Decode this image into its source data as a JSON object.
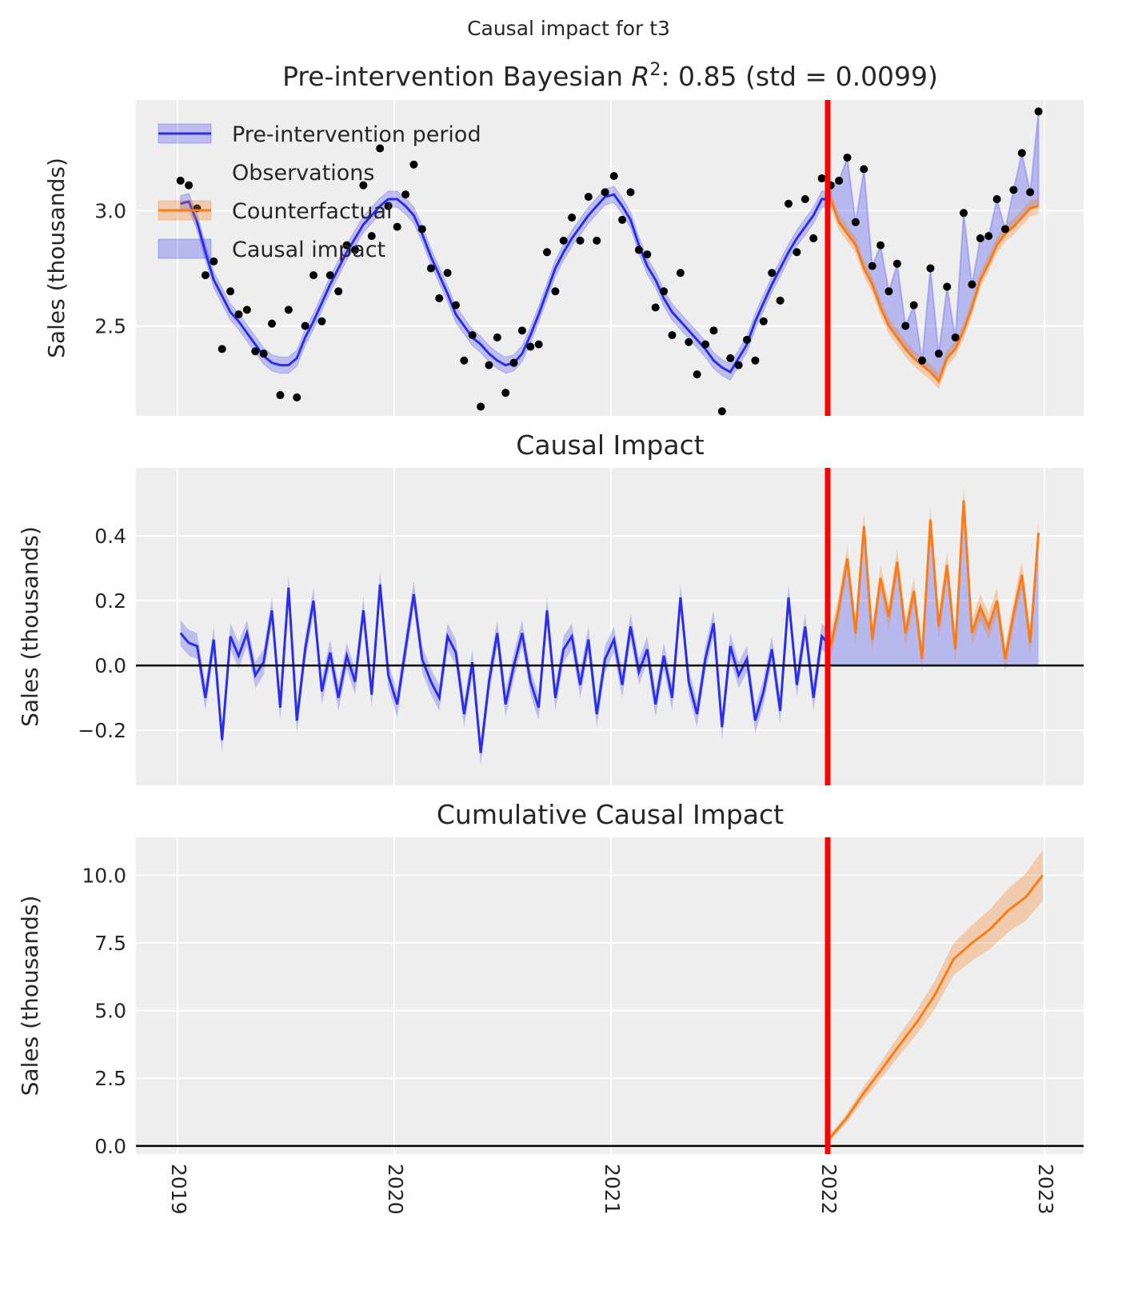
{
  "suptitle": "Causal impact for t3",
  "colors": {
    "model": "#2a2eec",
    "counterfactual": "#fa7c17",
    "intervention": "#ff0000",
    "observations": "#000000",
    "panel_bg": "#eeeeee",
    "grid": "#ffffff"
  },
  "chart_data": [
    {
      "type": "line",
      "title": "Pre-intervention Bayesian R²: 0.85 (std = 0.0099)",
      "title_parts": {
        "prefix": "Pre-intervention Bayesian ",
        "var": "R",
        "sup": "2",
        "suffix": ": 0.85 (std = 0.0099)"
      },
      "ylabel": "Sales (thousands)",
      "ylim": [
        2.11,
        3.48
      ],
      "xlim": [
        "2018-10-23",
        "2023-03-08"
      ],
      "yticks": [
        2.5,
        3.0
      ],
      "ytick_labels": [
        "2.5",
        "3.0"
      ],
      "grid": true,
      "legend": {
        "placement": "top-left",
        "entries": [
          "Pre-intervention period",
          "Observations",
          "Counterfactual",
          "Causal impact"
        ]
      },
      "intervention_date": "2022-01-01",
      "band_halfwidth": 0.035
    },
    {
      "type": "line",
      "title": "Causal Impact",
      "ylabel": "Sales (thousands)",
      "ylim": [
        -0.37,
        0.61
      ],
      "yticks": [
        -0.2,
        0.0,
        0.2,
        0.4
      ],
      "ytick_labels": [
        "−0.2",
        "0.0",
        "0.2",
        "0.4"
      ],
      "grid": true,
      "band_halfwidth": 0.04
    },
    {
      "type": "line",
      "title": "Cumulative Causal Impact",
      "ylabel": "Sales (thousands)",
      "ylim": [
        -0.3,
        11.4
      ],
      "yticks": [
        0.0,
        2.5,
        5.0,
        7.5,
        10.0
      ],
      "ytick_labels": [
        "0.0",
        "2.5",
        "5.0",
        "7.5",
        "10.0"
      ],
      "grid": true,
      "xticks": [
        "2019-01-01",
        "2020-01-01",
        "2021-01-01",
        "2022-01-01",
        "2023-01-01"
      ],
      "xtick_labels": [
        "2019",
        "2020",
        "2021",
        "2022",
        "2023"
      ],
      "cumulative": {
        "dates": [
          "2022-01-01",
          "2022-02-01",
          "2022-03-01",
          "2022-04-01",
          "2022-05-01",
          "2022-06-01",
          "2022-07-01",
          "2022-08-01",
          "2022-09-01",
          "2022-10-01",
          "2022-11-01",
          "2022-12-01",
          "2022-12-29"
        ],
        "values": [
          0.2,
          1.0,
          1.9,
          2.8,
          3.7,
          4.6,
          5.6,
          6.9,
          7.5,
          8.0,
          8.7,
          9.2,
          10.0
        ]
      }
    }
  ],
  "series": {
    "month_days": [
      "01-06",
      "01-20",
      "02-03",
      "02-17",
      "03-03",
      "03-17",
      "03-31",
      "04-14",
      "04-28",
      "05-12",
      "05-26",
      "06-09",
      "06-23",
      "07-07",
      "07-21",
      "08-04",
      "08-18",
      "09-01",
      "09-15",
      "09-29",
      "10-13",
      "10-27",
      "11-10",
      "11-24",
      "12-08",
      "12-22"
    ],
    "years": [
      2019,
      2020,
      2021,
      2022
    ],
    "model_mean": [
      3.03,
      3.04,
      2.95,
      2.82,
      2.7,
      2.63,
      2.56,
      2.52,
      2.47,
      2.42,
      2.37,
      2.34,
      2.33,
      2.33,
      2.36,
      2.45,
      2.52,
      2.6,
      2.68,
      2.75,
      2.82,
      2.88,
      2.94,
      2.98,
      3.02,
      3.05,
      3.05,
      3.02,
      2.98,
      2.9,
      2.8,
      2.72,
      2.64,
      2.55,
      2.5,
      2.45,
      2.42,
      2.38,
      2.35,
      2.33,
      2.34,
      2.38,
      2.46,
      2.55,
      2.65,
      2.75,
      2.82,
      2.88,
      2.93,
      2.98,
      3.02,
      3.06,
      3.07,
      3.02,
      2.96,
      2.85,
      2.76,
      2.7,
      2.62,
      2.56,
      2.52,
      2.48,
      2.44,
      2.4,
      2.35,
      2.32,
      2.3,
      2.36,
      2.42,
      2.52,
      2.6,
      2.68,
      2.75,
      2.82,
      2.88,
      2.93,
      2.98,
      3.05,
      3.05,
      2.95,
      2.9,
      2.85,
      2.75,
      2.68,
      2.58,
      2.5,
      2.45,
      2.4,
      2.36,
      2.33,
      2.3,
      2.26,
      2.36,
      2.4,
      2.48,
      2.58,
      2.7,
      2.77,
      2.85,
      2.9,
      2.93,
      2.97,
      3.01,
      3.02
    ],
    "impact": [
      0.1,
      0.07,
      0.06,
      -0.1,
      0.08,
      -0.23,
      0.09,
      0.03,
      0.1,
      -0.03,
      0.01,
      0.17,
      -0.13,
      0.24,
      -0.17,
      0.05,
      0.2,
      -0.08,
      0.04,
      -0.1,
      0.03,
      -0.05,
      0.17,
      -0.09,
      0.25,
      -0.03,
      -0.12,
      0.05,
      0.22,
      0.02,
      -0.05,
      -0.1,
      0.09,
      0.04,
      -0.15,
      0.01,
      -0.27,
      -0.05,
      0.1,
      -0.12,
      0.0,
      0.1,
      -0.05,
      -0.13,
      0.17,
      -0.1,
      0.05,
      0.09,
      -0.06,
      0.08,
      -0.15,
      0.02,
      0.08,
      -0.06,
      0.12,
      -0.02,
      0.05,
      -0.12,
      0.03,
      -0.1,
      0.21,
      -0.05,
      -0.15,
      0.02,
      0.13,
      -0.19,
      0.06,
      -0.03,
      0.02,
      -0.17,
      -0.08,
      0.05,
      -0.14,
      0.21,
      -0.06,
      0.12,
      -0.1,
      0.09,
      0.06,
      0.18,
      0.33,
      0.1,
      0.43,
      0.08,
      0.27,
      0.15,
      0.32,
      0.1,
      0.23,
      0.02,
      0.45,
      0.12,
      0.31,
      0.05,
      0.51,
      0.1,
      0.18,
      0.12,
      0.2,
      0.02,
      0.16,
      0.28,
      0.07,
      0.41
    ]
  }
}
